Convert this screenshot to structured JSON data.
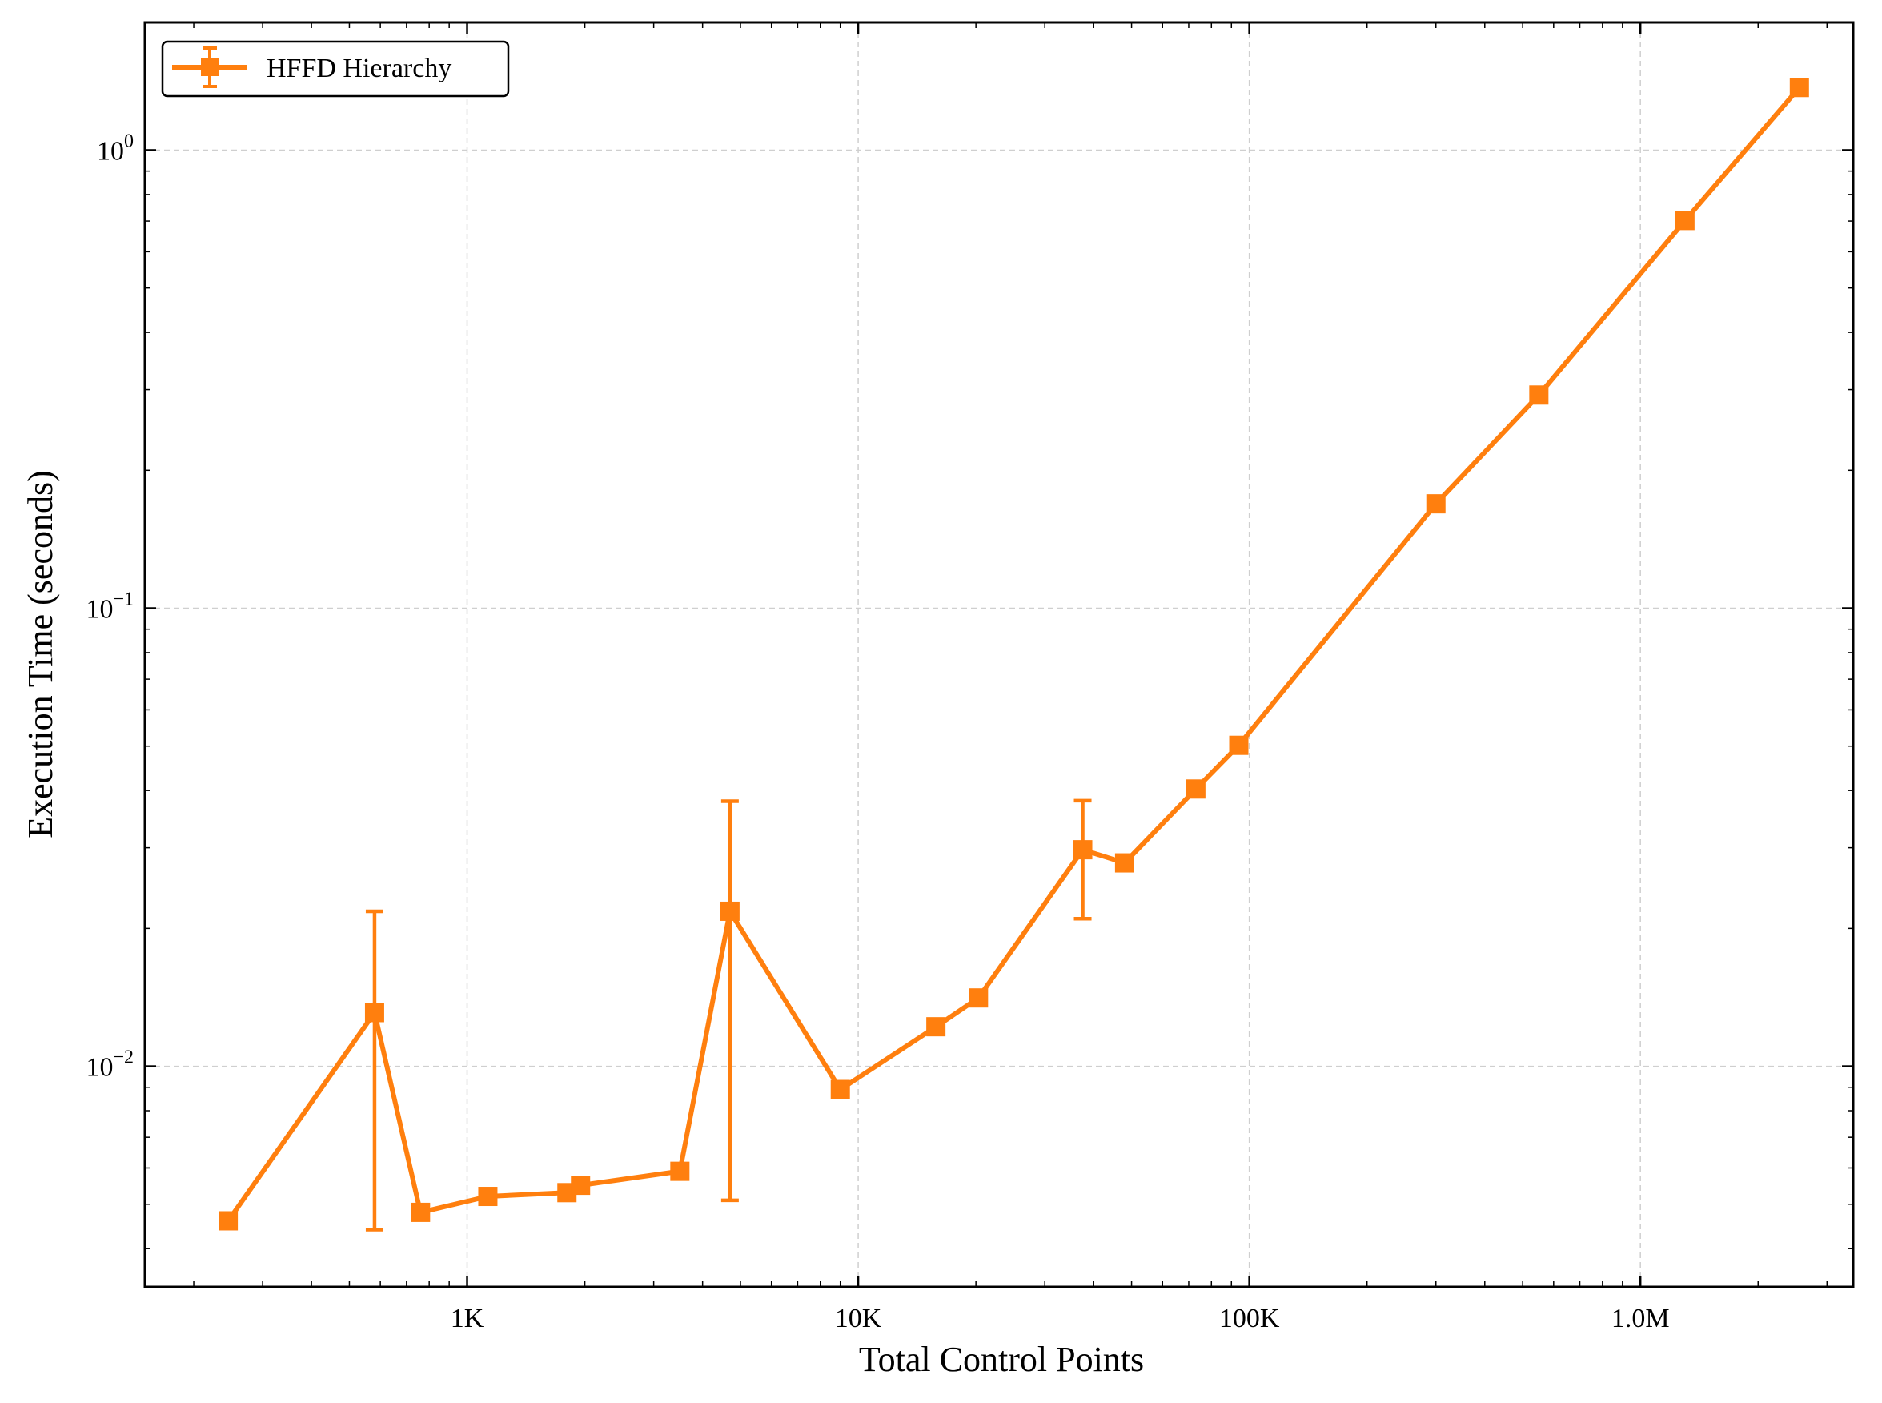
{
  "chart_data": {
    "type": "line",
    "xlabel": "Total Control Points",
    "ylabel": "Execution Time (seconds)",
    "x_scale": "log",
    "y_scale": "log",
    "xlim": [
      150,
      3500000
    ],
    "ylim": [
      0.0033,
      1.9
    ],
    "x_ticks": [
      {
        "value": 1000,
        "label": "1K"
      },
      {
        "value": 10000,
        "label": "10K"
      },
      {
        "value": 100000,
        "label": "100K"
      },
      {
        "value": 1000000,
        "label": "1.0M"
      }
    ],
    "y_ticks": [
      {
        "value": 0.01,
        "base": "10",
        "exp": "−2"
      },
      {
        "value": 0.1,
        "base": "10",
        "exp": "−1"
      },
      {
        "value": 1,
        "base": "10",
        "exp": "0"
      }
    ],
    "grid": true,
    "legend_position": "top-left",
    "colors": {
      "series": "#ff7f0e"
    },
    "series": [
      {
        "name": "HFFD Hierarchy",
        "marker": "square",
        "points": [
          {
            "x": 245,
            "y": 0.0046
          },
          {
            "x": 580,
            "y": 0.0131,
            "yerr_low": 0.0044,
            "yerr_high": 0.0218
          },
          {
            "x": 760,
            "y": 0.0048
          },
          {
            "x": 1130,
            "y": 0.0052
          },
          {
            "x": 1800,
            "y": 0.0053
          },
          {
            "x": 1950,
            "y": 0.0055
          },
          {
            "x": 3500,
            "y": 0.0059
          },
          {
            "x": 4700,
            "y": 0.0218,
            "yerr_low": 0.0051,
            "yerr_high": 0.0379
          },
          {
            "x": 9000,
            "y": 0.0089
          },
          {
            "x": 15800,
            "y": 0.0122
          },
          {
            "x": 20300,
            "y": 0.0141
          },
          {
            "x": 37500,
            "y": 0.0297,
            "yerr_low": 0.021,
            "yerr_high": 0.038
          },
          {
            "x": 48000,
            "y": 0.0278
          },
          {
            "x": 73000,
            "y": 0.0403
          },
          {
            "x": 94000,
            "y": 0.0502
          },
          {
            "x": 300000,
            "y": 0.169
          },
          {
            "x": 550000,
            "y": 0.292
          },
          {
            "x": 1300000,
            "y": 0.702
          },
          {
            "x": 2550000,
            "y": 1.37
          }
        ]
      }
    ]
  }
}
